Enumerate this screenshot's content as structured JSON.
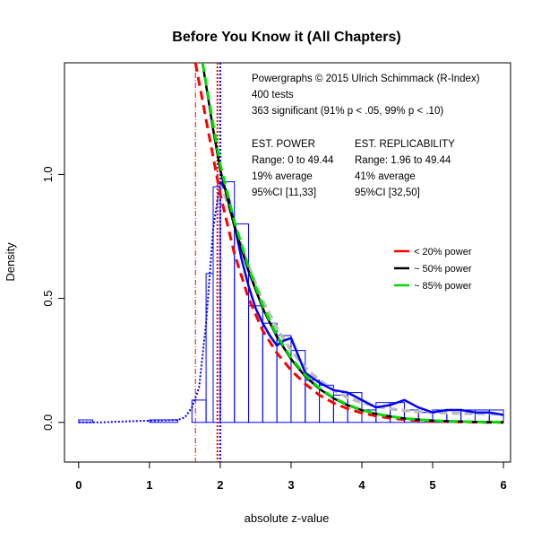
{
  "chart_data": {
    "type": "bar",
    "title": "Before You Know it (All Chapters)",
    "xlabel": "absolute z-value",
    "ylabel": "Density",
    "xlim": [
      -0.2,
      6.1
    ],
    "ylim": [
      -0.16,
      1.45
    ],
    "x_ticks": [
      "0",
      "1",
      "2",
      "3",
      "4",
      "5",
      "6"
    ],
    "y_ticks": [
      "0.0",
      "0.5",
      "1.0"
    ],
    "histogram": {
      "bin_edges": [
        1.6,
        1.8,
        1.9,
        2.0,
        2.2,
        2.4,
        2.6,
        2.8,
        3.0,
        3.2,
        3.4,
        3.6,
        3.8,
        4.0,
        4.2,
        4.4,
        4.6,
        4.8,
        5.0,
        5.2,
        5.4,
        5.6,
        5.8,
        6.0
      ],
      "density": [
        0.09,
        0.6,
        0.95,
        0.97,
        0.8,
        0.47,
        0.4,
        0.35,
        0.29,
        0.17,
        0.15,
        0.11,
        0.12,
        0.05,
        0.08,
        0.08,
        0.05,
        0.04,
        0.05,
        0.05,
        0.05,
        0.05,
        0.05
      ],
      "low_bins": [
        {
          "x0": 0.0,
          "x1": 0.2,
          "density": 0.01
        },
        {
          "x0": 1.0,
          "x1": 1.4,
          "density": 0.01
        }
      ]
    },
    "series": [
      {
        "name": "< 20% power",
        "color": "#ff0000",
        "style": "dashed",
        "x": [
          1.65,
          1.8,
          2.0,
          2.2,
          2.4,
          2.6,
          2.8,
          3.0,
          3.2,
          3.4,
          3.6,
          3.8,
          4.0,
          4.2,
          4.4,
          4.6,
          4.8,
          5.0,
          5.2,
          5.4,
          5.6,
          5.8,
          6.0
        ],
        "y": [
          1.46,
          1.22,
          0.92,
          0.68,
          0.5,
          0.37,
          0.28,
          0.21,
          0.155,
          0.11,
          0.078,
          0.055,
          0.038,
          0.026,
          0.017,
          0.011,
          0.007,
          0.004,
          0.003,
          0.002,
          0.001,
          0.0,
          0.0
        ]
      },
      {
        "name": "~ 50% power",
        "color": "#000000",
        "style": "solid",
        "x": [
          1.75,
          1.9,
          2.0,
          2.2,
          2.4,
          2.6,
          2.8,
          3.0,
          3.2,
          3.4,
          3.6,
          3.8,
          4.0,
          4.2,
          4.4,
          4.6,
          4.8,
          5.0,
          5.2,
          5.4,
          5.6,
          5.8,
          6.0
        ],
        "y": [
          1.46,
          1.18,
          1.02,
          0.79,
          0.61,
          0.46,
          0.345,
          0.255,
          0.185,
          0.135,
          0.097,
          0.069,
          0.049,
          0.034,
          0.024,
          0.016,
          0.011,
          0.007,
          0.005,
          0.003,
          0.002,
          0.001,
          0.0
        ]
      },
      {
        "name": "~ 85% power",
        "color": "#00dd00",
        "style": "dashed",
        "x": [
          1.75,
          1.9,
          2.0,
          2.2,
          2.4,
          2.6,
          2.8,
          3.0,
          3.2,
          3.4,
          3.6,
          3.8,
          4.0,
          4.2,
          4.4,
          4.6,
          4.8,
          5.0,
          5.2,
          5.4,
          5.6,
          5.8,
          6.0
        ],
        "y": [
          1.46,
          1.2,
          1.04,
          0.81,
          0.625,
          0.47,
          0.35,
          0.26,
          0.19,
          0.138,
          0.099,
          0.071,
          0.05,
          0.035,
          0.024,
          0.016,
          0.011,
          0.007,
          0.005,
          0.003,
          0.002,
          0.001,
          0.0
        ]
      },
      {
        "name": "",
        "color": "#bbbbbb",
        "style": "dashed-thick",
        "x": [
          2.0,
          2.2,
          2.4,
          2.6,
          2.8,
          3.0,
          3.2,
          3.4,
          3.6,
          3.8,
          4.0,
          4.2,
          4.4,
          4.6,
          4.8,
          5.0,
          5.2,
          5.4,
          5.6,
          5.8,
          6.0
        ],
        "y": [
          0.97,
          0.8,
          0.63,
          0.49,
          0.38,
          0.29,
          0.22,
          0.17,
          0.13,
          0.1,
          0.08,
          0.065,
          0.055,
          0.048,
          0.043,
          0.04,
          0.038,
          0.036,
          0.035,
          0.034,
          0.033
        ]
      },
      {
        "name": "",
        "color": "#0000ff",
        "style": "solid-thick",
        "x": [
          2.0,
          2.1,
          2.2,
          2.3,
          2.4,
          2.5,
          2.6,
          2.7,
          2.8,
          2.9,
          3.0,
          3.1,
          3.2,
          3.4,
          3.6,
          3.8,
          4.0,
          4.2,
          4.4,
          4.6,
          4.8,
          5.0,
          5.2,
          5.4,
          5.6,
          5.8,
          6.0
        ],
        "y": [
          0.97,
          0.93,
          0.8,
          0.66,
          0.55,
          0.46,
          0.4,
          0.35,
          0.31,
          0.33,
          0.34,
          0.27,
          0.2,
          0.16,
          0.13,
          0.12,
          0.09,
          0.06,
          0.07,
          0.09,
          0.06,
          0.04,
          0.05,
          0.05,
          0.04,
          0.04,
          0.03
        ]
      },
      {
        "name": "",
        "color": "#0000ff",
        "style": "dotted",
        "x": [
          0.0,
          0.3,
          0.6,
          0.9,
          1.2,
          1.4,
          1.5,
          1.6,
          1.7,
          1.8,
          1.9,
          2.0
        ],
        "y": [
          0.0,
          0.0,
          0.003,
          0.006,
          0.008,
          0.01,
          0.02,
          0.06,
          0.14,
          0.4,
          0.78,
          0.97
        ]
      }
    ],
    "vlines": [
      {
        "x": 1.65,
        "color": "#ff0000",
        "style": "dashdot"
      },
      {
        "x": 1.96,
        "color": "#ff0000",
        "style": "dotted"
      },
      {
        "x": 2.0,
        "color": "#0000ff",
        "style": "dotted"
      }
    ],
    "annotations": {
      "header": [
        "Powergraphs © 2015 Ulrich Schimmack (R-Index)",
        "400 tests",
        "363 significant (91% p < .05, 99% p < .10)"
      ],
      "power_col": [
        "EST. POWER",
        "Range: 0 to 49.44",
        "19% average",
        "95%CI [11,33]"
      ],
      "replic_col": [
        "EST. REPLICABILITY",
        "Range: 1.96 to 49.44",
        "41% average",
        "95%CI [32,50]"
      ]
    },
    "legend": {
      "position": "right",
      "entries": [
        {
          "label": "< 20% power",
          "color": "#ff0000"
        },
        {
          "label": "~ 50% power",
          "color": "#000000"
        },
        {
          "label": "~ 85% power",
          "color": "#00dd00"
        }
      ]
    },
    "grid": false,
    "colors": {
      "bars": "#0000ff",
      "frame": "#000000"
    }
  }
}
